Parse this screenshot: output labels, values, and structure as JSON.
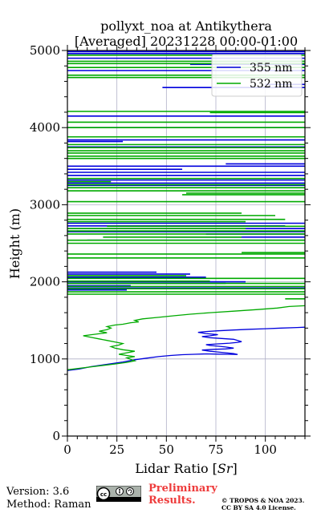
{
  "chart_data": {
    "type": "line",
    "title": [
      "pollyxt_noa at Antikythera",
      "[Averaged] 20231228 00:00-01:00"
    ],
    "xlabel": "Lidar Ratio [",
    "xlabel_unit": "Sr",
    "xlabel_close": "]",
    "ylabel": "Height (m)",
    "xlim": [
      0,
      120
    ],
    "ylim": [
      0,
      5000
    ],
    "xticks": [
      "0",
      "25",
      "50",
      "75",
      "100"
    ],
    "xtick_values": [
      0,
      25,
      50,
      75,
      100
    ],
    "yticks": [
      "0",
      "1000",
      "2000",
      "3000",
      "4000",
      "5000"
    ],
    "ytick_values": [
      0,
      1000,
      2000,
      3000,
      4000,
      5000
    ],
    "grid": true,
    "legend_position": "top-right",
    "series": [
      {
        "name": "355 nm",
        "color": "#0000dd",
        "profile": [
          [
            0,
            850
          ],
          [
            6,
            870
          ],
          [
            12,
            900
          ],
          [
            20,
            930
          ],
          [
            28,
            960
          ],
          [
            34,
            990
          ],
          [
            40,
            1010
          ],
          [
            46,
            1030
          ],
          [
            52,
            1045
          ],
          [
            58,
            1055
          ],
          [
            64,
            1060
          ],
          [
            70,
            1065
          ],
          [
            76,
            1062
          ],
          [
            82,
            1060
          ],
          [
            86,
            1058
          ],
          [
            84,
            1070
          ],
          [
            78,
            1085
          ],
          [
            72,
            1100
          ],
          [
            68,
            1115
          ],
          [
            74,
            1125
          ],
          [
            80,
            1130
          ],
          [
            84,
            1140
          ],
          [
            80,
            1155
          ],
          [
            76,
            1165
          ],
          [
            72,
            1175
          ],
          [
            70,
            1185
          ],
          [
            76,
            1195
          ],
          [
            82,
            1205
          ],
          [
            86,
            1215
          ],
          [
            88,
            1225
          ],
          [
            86,
            1240
          ],
          [
            84,
            1255
          ],
          [
            78,
            1265
          ],
          [
            72,
            1275
          ],
          [
            68,
            1290
          ],
          [
            72,
            1300
          ],
          [
            76,
            1315
          ],
          [
            70,
            1330
          ],
          [
            66,
            1345
          ],
          [
            70,
            1355
          ],
          [
            76,
            1365
          ],
          [
            84,
            1375
          ],
          [
            92,
            1385
          ],
          [
            100,
            1392
          ],
          [
            108,
            1400
          ],
          [
            116,
            1408
          ],
          [
            120,
            1412
          ]
        ],
        "segments": [
          [
            0,
            1895,
            30,
            1895
          ],
          [
            0,
            1920,
            120,
            1920
          ],
          [
            0,
            1950,
            32,
            1950
          ],
          [
            0,
            1980,
            80,
            1980
          ],
          [
            0,
            2000,
            90,
            2000
          ],
          [
            0,
            2060,
            70,
            2060
          ],
          [
            0,
            2100,
            62,
            2100
          ],
          [
            0,
            2125,
            45,
            2125
          ],
          [
            10,
            2540,
            120,
            2540
          ],
          [
            50,
            2580,
            120,
            2580
          ],
          [
            70,
            2620,
            120,
            2620
          ],
          [
            0,
            2650,
            120,
            2650
          ],
          [
            0,
            2690,
            120,
            2690
          ],
          [
            0,
            2725,
            110,
            2725
          ],
          [
            0,
            2760,
            120,
            2760
          ],
          [
            0,
            3250,
            120,
            3250
          ],
          [
            0,
            3280,
            120,
            3280
          ],
          [
            0,
            3320,
            120,
            3320
          ],
          [
            0,
            3380,
            120,
            3380
          ],
          [
            0,
            3420,
            120,
            3420
          ],
          [
            0,
            3460,
            58,
            3460
          ],
          [
            0,
            3500,
            120,
            3500
          ],
          [
            80,
            3530,
            120,
            3530
          ],
          [
            0,
            3750,
            120,
            3750
          ],
          [
            0,
            3820,
            28,
            3820
          ],
          [
            0,
            3840,
            120,
            3840
          ],
          [
            0,
            4000,
            120,
            4000
          ],
          [
            0,
            4150,
            120,
            4150
          ],
          [
            48,
            4520,
            120,
            4520
          ],
          [
            100,
            4560,
            120,
            4560
          ],
          [
            0,
            4740,
            120,
            4740
          ],
          [
            62,
            4820,
            120,
            4820
          ],
          [
            0,
            4900,
            120,
            4900
          ],
          [
            0,
            4960,
            120,
            4960
          ],
          [
            0,
            4985,
            120,
            4985
          ]
        ]
      },
      {
        "name": "532 nm",
        "color": "#00aa00",
        "profile": [
          [
            0,
            860
          ],
          [
            8,
            885
          ],
          [
            16,
            910
          ],
          [
            24,
            935
          ],
          [
            30,
            955
          ],
          [
            34,
            975
          ],
          [
            32,
            995
          ],
          [
            30,
            1015
          ],
          [
            34,
            1030
          ],
          [
            30,
            1045
          ],
          [
            26,
            1060
          ],
          [
            30,
            1080
          ],
          [
            34,
            1100
          ],
          [
            28,
            1120
          ],
          [
            24,
            1140
          ],
          [
            22,
            1160
          ],
          [
            26,
            1180
          ],
          [
            28,
            1200
          ],
          [
            24,
            1220
          ],
          [
            20,
            1240
          ],
          [
            16,
            1260
          ],
          [
            12,
            1280
          ],
          [
            8,
            1300
          ],
          [
            14,
            1320
          ],
          [
            20,
            1340
          ],
          [
            16,
            1360
          ],
          [
            20,
            1380
          ],
          [
            22,
            1400
          ],
          [
            20,
            1420
          ],
          [
            24,
            1440
          ],
          [
            28,
            1450
          ],
          [
            32,
            1470
          ],
          [
            36,
            1480
          ],
          [
            34,
            1500
          ],
          [
            38,
            1520
          ],
          [
            46,
            1540
          ],
          [
            54,
            1560
          ],
          [
            62,
            1580
          ],
          [
            72,
            1600
          ],
          [
            84,
            1620
          ],
          [
            96,
            1640
          ],
          [
            106,
            1660
          ],
          [
            112,
            1680
          ],
          [
            120,
            1690
          ]
        ],
        "segments": [
          [
            120,
            1780,
            110,
            1780
          ],
          [
            0,
            1840,
            120,
            1840
          ],
          [
            0,
            1870,
            120,
            1870
          ],
          [
            0,
            1910,
            120,
            1910
          ],
          [
            0,
            1940,
            120,
            1940
          ],
          [
            0,
            1980,
            120,
            1980
          ],
          [
            0,
            2010,
            72,
            2010
          ],
          [
            0,
            2045,
            120,
            2045
          ],
          [
            0,
            2080,
            60,
            2080
          ],
          [
            0,
            2310,
            120,
            2310
          ],
          [
            0,
            2360,
            120,
            2360
          ],
          [
            88,
            2380,
            120,
            2380
          ],
          [
            0,
            2500,
            120,
            2500
          ],
          [
            0,
            2540,
            120,
            2540
          ],
          [
            18,
            2580,
            88,
            2580
          ],
          [
            0,
            2620,
            120,
            2620
          ],
          [
            0,
            2660,
            120,
            2660
          ],
          [
            0,
            2690,
            90,
            2690
          ],
          [
            20,
            2720,
            120,
            2720
          ],
          [
            0,
            2780,
            90,
            2780
          ],
          [
            0,
            2810,
            110,
            2810
          ],
          [
            0,
            2860,
            105,
            2860
          ],
          [
            0,
            2890,
            88,
            2890
          ],
          [
            0,
            3040,
            120,
            3040
          ],
          [
            58,
            3130,
            120,
            3130
          ],
          [
            60,
            3150,
            120,
            3150
          ],
          [
            0,
            3180,
            120,
            3180
          ],
          [
            0,
            3220,
            120,
            3220
          ],
          [
            0,
            3260,
            120,
            3260
          ],
          [
            0,
            3300,
            22,
            3300
          ],
          [
            0,
            3340,
            120,
            3340
          ],
          [
            0,
            3600,
            120,
            3600
          ],
          [
            0,
            3630,
            120,
            3630
          ],
          [
            0,
            3670,
            120,
            3670
          ],
          [
            0,
            3700,
            120,
            3700
          ],
          [
            0,
            3740,
            120,
            3740
          ],
          [
            0,
            3780,
            120,
            3780
          ],
          [
            0,
            3880,
            120,
            3880
          ],
          [
            0,
            4000,
            120,
            4000
          ],
          [
            0,
            4070,
            120,
            4070
          ],
          [
            0,
            4210,
            120,
            4210
          ],
          [
            72,
            4195,
            120,
            4195
          ],
          [
            0,
            4650,
            120,
            4650
          ],
          [
            0,
            4680,
            120,
            4680
          ],
          [
            0,
            4780,
            120,
            4780
          ],
          [
            0,
            4830,
            120,
            4830
          ],
          [
            0,
            4860,
            120,
            4860
          ],
          [
            0,
            4940,
            120,
            4940
          ]
        ]
      }
    ]
  },
  "footer": {
    "version": "Version: 3.6",
    "method": "Method: Raman",
    "prelim_line1": "Preliminary",
    "prelim_line2": "Results.",
    "copyright_line1": "© TROPOS & NOA 2023.",
    "copyright_line2": "CC BY SA 4.0 License."
  }
}
